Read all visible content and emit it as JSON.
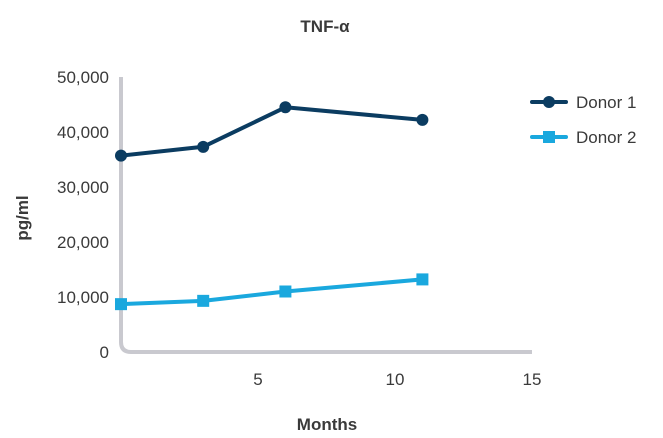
{
  "chart_data": {
    "type": "line",
    "title": "TNF-α",
    "xlabel": "Months",
    "ylabel": "pg/ml",
    "xlim": [
      0,
      15
    ],
    "ylim": [
      0,
      50000
    ],
    "xticks": [
      5,
      10,
      15
    ],
    "xtick_labels": [
      "5",
      "10",
      "15"
    ],
    "yticks": [
      0,
      10000,
      20000,
      30000,
      40000,
      50000
    ],
    "ytick_labels": [
      "0",
      "10,000",
      "20,000",
      "30,000",
      "40,000",
      "50,000"
    ],
    "grid": false,
    "legend_position": "top-right",
    "series": [
      {
        "name": "Donor 1",
        "color": "#0b3c61",
        "marker": "circle",
        "x": [
          0,
          3,
          6,
          11
        ],
        "y": [
          35700,
          37300,
          44500,
          42200
        ]
      },
      {
        "name": "Donor 2",
        "color": "#1aa8de",
        "marker": "square",
        "x": [
          0,
          3,
          6,
          11
        ],
        "y": [
          8700,
          9300,
          11000,
          13200
        ]
      }
    ]
  }
}
